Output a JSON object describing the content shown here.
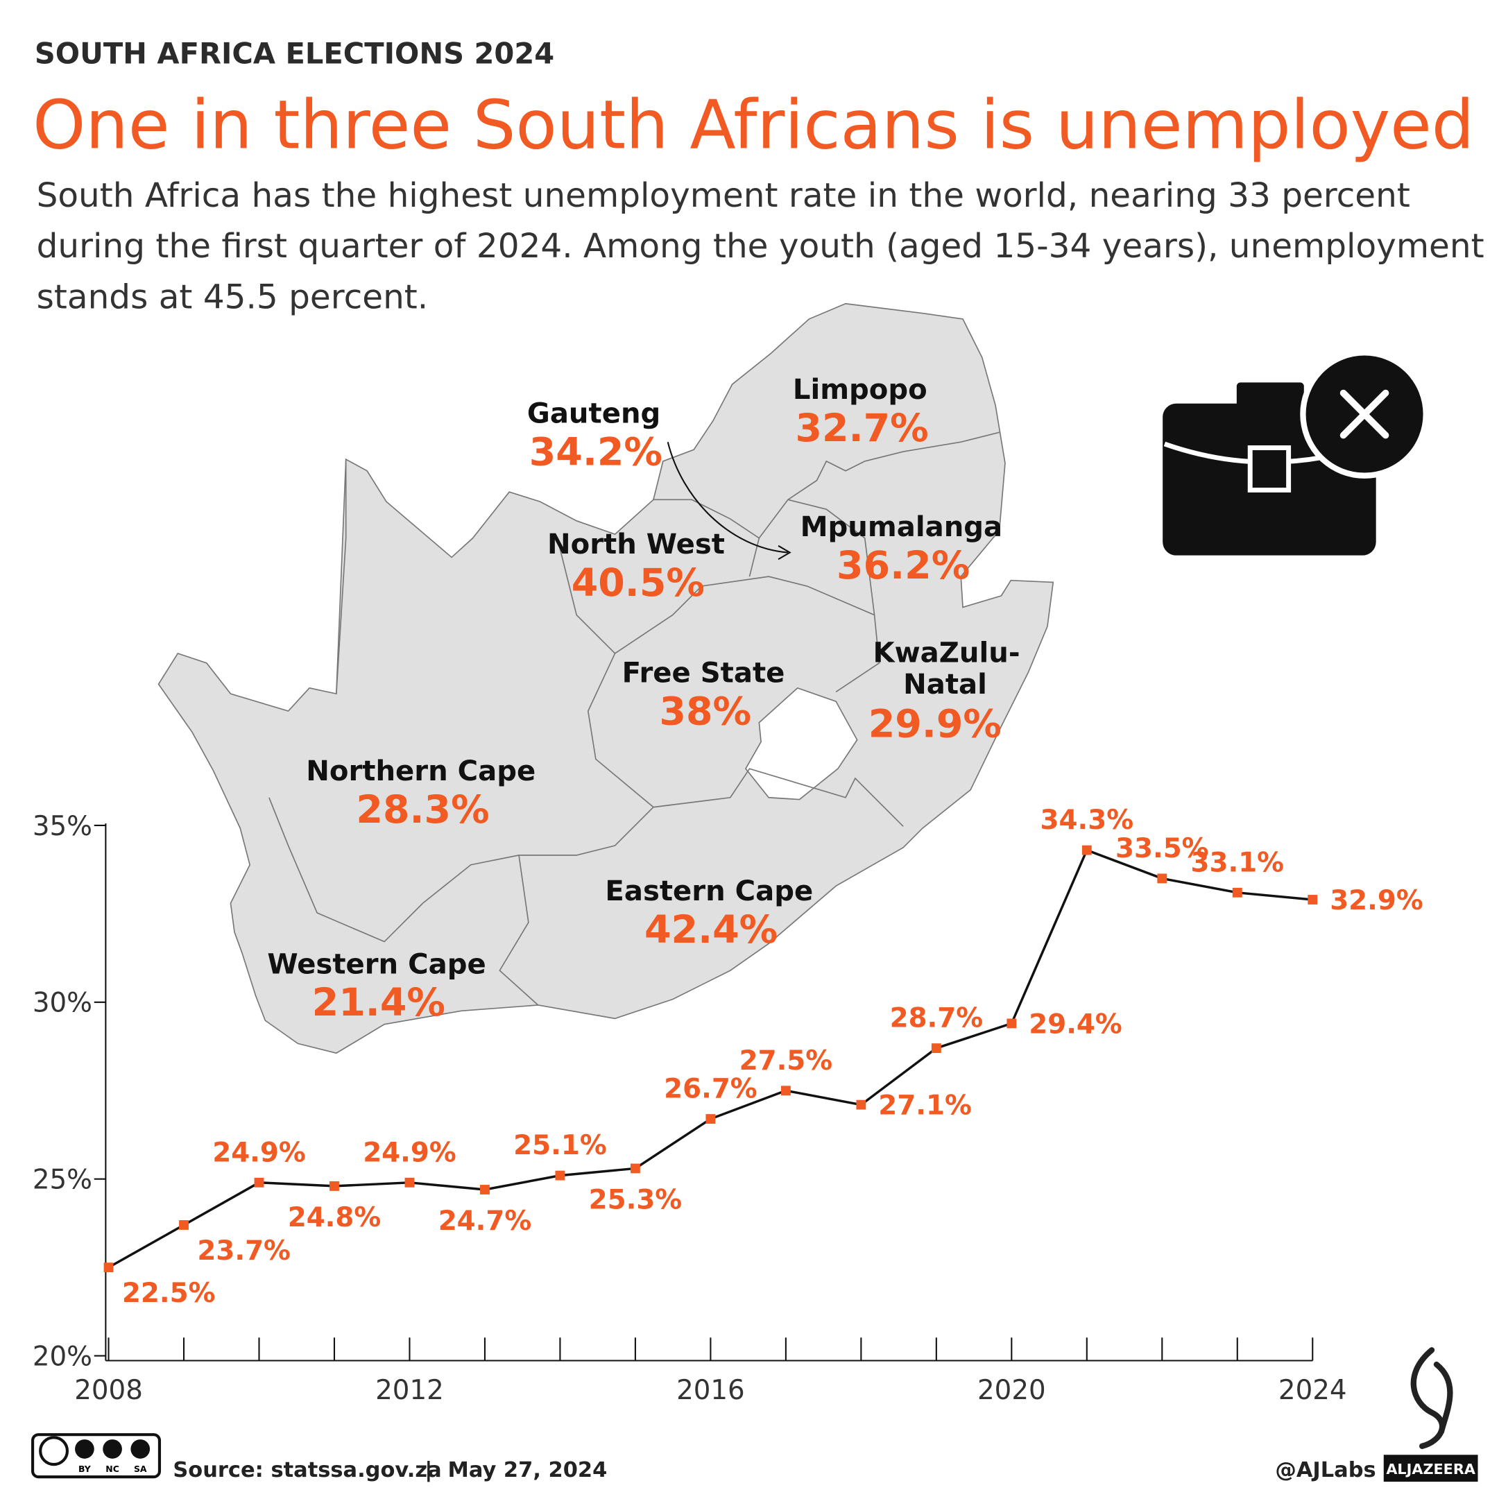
{
  "header": {
    "kicker": "SOUTH AFRICA ELECTIONS 2024",
    "title": "One in three South Africans is unemployed",
    "subtitle": [
      "South Africa has the highest unemployment rate in the world, nearing 33 percent",
      "during the first quarter of 2024. Among the youth (aged 15-34 years), unemployment",
      "stands at 45.5 percent."
    ]
  },
  "map": {
    "regions": [
      {
        "name": "Limpopo",
        "value": "32.7%"
      },
      {
        "name": "Gauteng",
        "value": "34.2%"
      },
      {
        "name": "Mpumalanga",
        "value": "36.2%"
      },
      {
        "name": "North West",
        "value": "40.5%"
      },
      {
        "name": "Free State",
        "value": "38%"
      },
      {
        "name": "KwaZulu-Natal",
        "value": "29.9%"
      },
      {
        "name": "Northern Cape",
        "value": "28.3%"
      },
      {
        "name": "Eastern Cape",
        "value": "42.4%"
      },
      {
        "name": "Western Cape",
        "value": "21.4%"
      }
    ]
  },
  "chart_data": {
    "type": "line",
    "x": [
      2008,
      2009,
      2010,
      2011,
      2012,
      2013,
      2014,
      2015,
      2016,
      2017,
      2018,
      2019,
      2020,
      2021,
      2022,
      2023,
      2024
    ],
    "series": [
      {
        "color": "#f15a22",
        "values": [
          22.5,
          23.7,
          24.9,
          24.8,
          24.9,
          24.7,
          25.1,
          25.3,
          26.7,
          27.5,
          27.1,
          28.7,
          29.4,
          34.3,
          33.5,
          33.1,
          32.9
        ],
        "value_labels": [
          "22.5%",
          "23.7%",
          "24.9%",
          "24.8%",
          "24.9%",
          "24.7%",
          "25.1%",
          "25.3%",
          "26.7%",
          "27.5%",
          "27.1%",
          "28.7%",
          "29.4%",
          "34.3%",
          "33.5%",
          "33.1%",
          "32.9%"
        ]
      }
    ],
    "xlim": [
      2008,
      2024
    ],
    "xticks": [
      2008,
      2012,
      2016,
      2020,
      2024
    ],
    "ylim": [
      20,
      35
    ],
    "yticks": [
      {
        "value": 20,
        "label": "20%"
      },
      {
        "value": 25,
        "label": "25%"
      },
      {
        "value": 30,
        "label": "30%"
      },
      {
        "value": 35,
        "label": "35%"
      }
    ]
  },
  "footer": {
    "license": [
      "BY",
      "NC",
      "SA"
    ],
    "source": "Source: statssa.gov.za",
    "separator": "|",
    "date": "May 27, 2024",
    "handle": "@AJLabs",
    "brand": "ALJAZEERA"
  }
}
